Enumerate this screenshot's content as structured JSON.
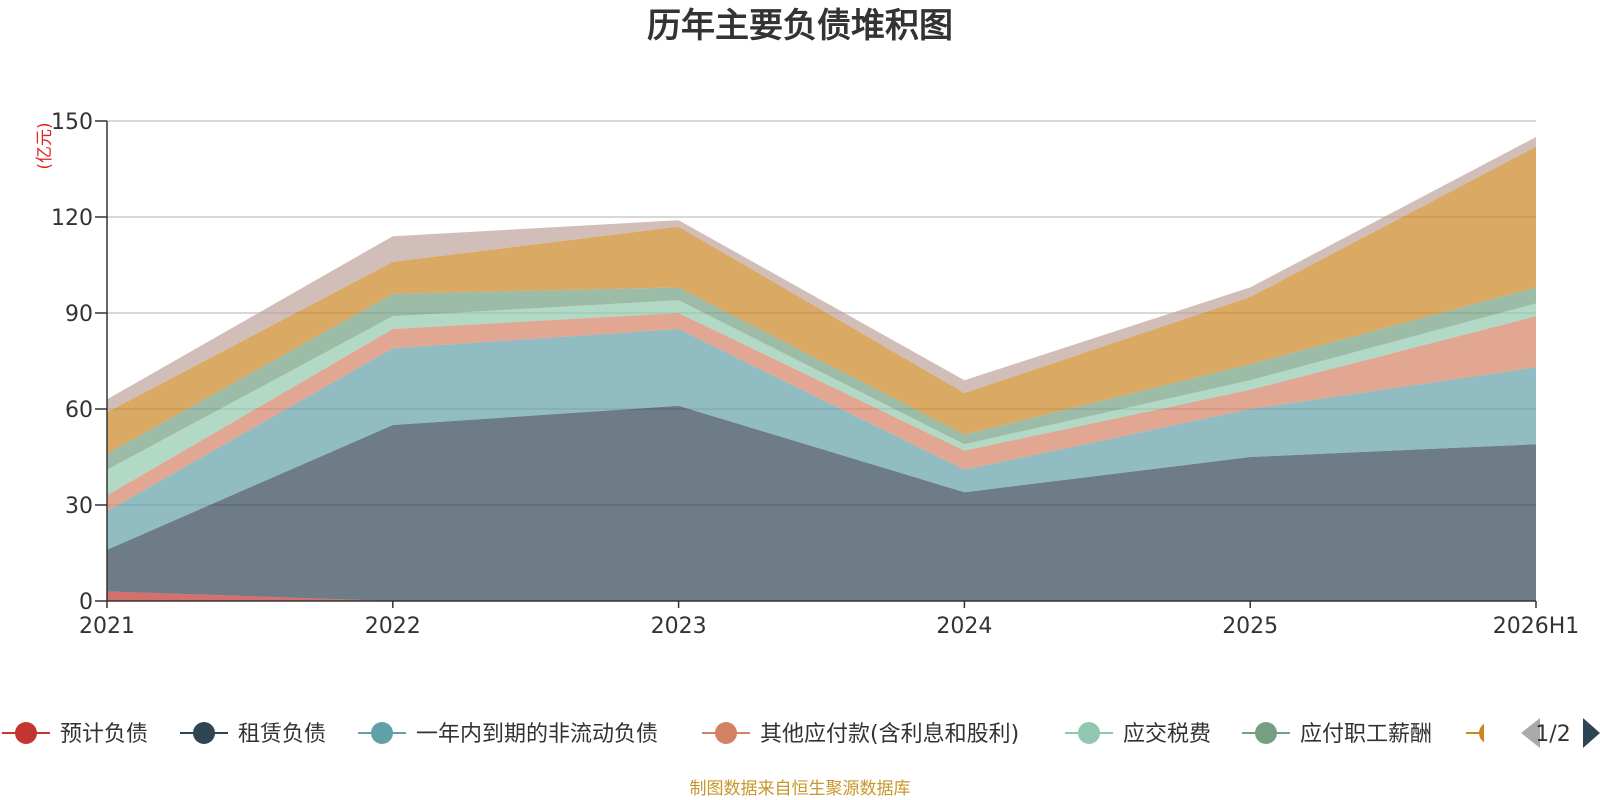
{
  "chart_data": {
    "type": "area",
    "stacked": true,
    "title": "历年主要负债堆积图",
    "unit_label": "(亿元)",
    "categories": [
      "2021",
      "2022",
      "2023",
      "2024",
      "2025",
      "2026H1"
    ],
    "ylim": [
      0,
      150
    ],
    "y_ticks": [
      "0",
      "30",
      "60",
      "90",
      "120",
      "150"
    ],
    "grid": true,
    "series": [
      {
        "name": "预计负债",
        "color": "#c23531",
        "values": [
          3,
          0,
          0,
          0,
          0,
          0
        ]
      },
      {
        "name": "租赁负债",
        "color": "#2f4554",
        "values": [
          13,
          55,
          61,
          34,
          45,
          49
        ]
      },
      {
        "name": "一年内到期的非流动负债",
        "color": "#61a0a8",
        "values": [
          12,
          24,
          24,
          7,
          15,
          24
        ]
      },
      {
        "name": "其他应付款(含利息和股利)",
        "color": "#d48265",
        "values": [
          5,
          6,
          5,
          6,
          6,
          16
        ]
      },
      {
        "name": "应交税费",
        "color": "#91c7ae",
        "values": [
          8,
          4,
          4,
          2,
          3,
          4
        ]
      },
      {
        "name": "应付职工薪酬",
        "color": "#749f83",
        "values": [
          5,
          7,
          4,
          3,
          5,
          5
        ]
      },
      {
        "name": "",
        "color": "#ca8622",
        "values": [
          13,
          10,
          19,
          13,
          21,
          44
        ]
      },
      {
        "name": "",
        "color": "#bda29a",
        "values": [
          4,
          8,
          2,
          4,
          3,
          3
        ]
      }
    ],
    "legend": {
      "position": "bottom",
      "page": "1/2"
    },
    "source_note": "制图数据来自恒生聚源数据库"
  }
}
